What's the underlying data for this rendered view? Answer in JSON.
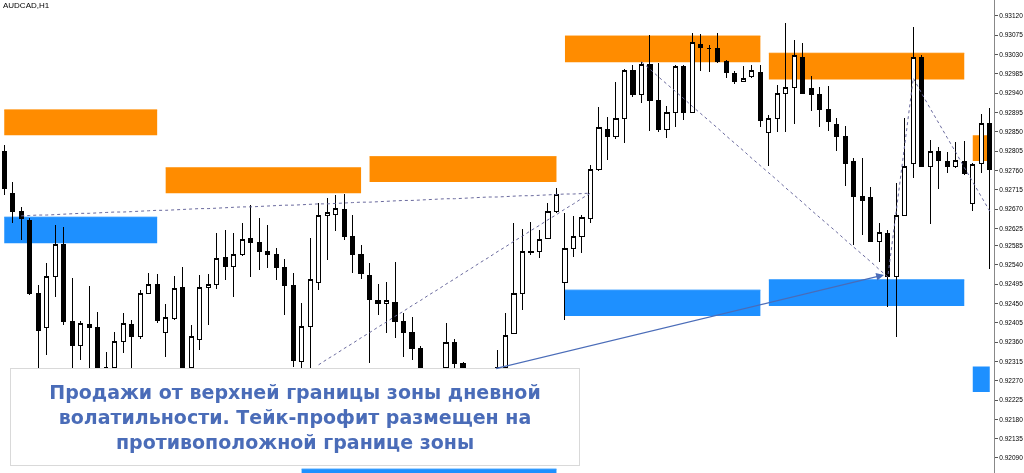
{
  "chart_data": {
    "type": "candlestick",
    "title": "AUDCAD,H1",
    "color": "#000000",
    "tick_labels": "y",
    "categories": [
      null,
      null,
      null,
      null,
      null,
      null,
      null,
      null,
      null,
      null,
      null,
      null,
      null,
      null,
      null,
      null,
      null,
      null,
      null,
      null,
      null,
      null,
      null,
      null,
      null,
      null,
      null,
      null,
      null,
      null,
      null,
      null,
      null,
      null,
      null,
      null,
      null,
      null,
      null,
      null,
      null,
      null,
      null,
      null,
      null,
      null,
      null,
      null,
      null,
      null,
      null,
      null,
      null,
      null,
      null,
      null,
      null,
      null,
      null,
      null,
      null,
      null,
      null,
      null,
      null,
      null,
      null,
      null,
      null,
      null,
      null,
      null,
      null,
      null,
      null,
      null,
      null,
      null,
      null,
      null,
      null,
      null,
      null,
      null,
      null,
      null,
      null,
      null,
      null,
      null,
      null,
      null,
      null,
      null,
      null,
      null,
      null,
      null,
      null,
      null,
      null,
      null,
      null,
      null,
      null,
      null,
      null,
      null,
      null,
      null,
      null,
      null,
      null,
      null,
      null,
      null,
      null
    ],
    "ohlc": [
      [
        0.92803,
        0.92819,
        0.92703,
        0.92719
      ],
      [
        0.92707,
        0.92733,
        0.92637,
        0.92665
      ],
      [
        0.92665,
        0.92675,
        0.92598,
        0.92647
      ],
      [
        0.92644,
        0.92649,
        0.9247,
        0.92474
      ],
      [
        0.92474,
        0.92493,
        0.923,
        0.92388
      ],
      [
        0.92395,
        0.92544,
        0.9233,
        0.92512
      ],
      [
        0.92512,
        0.92633,
        0.92465,
        0.92588
      ],
      [
        0.92588,
        0.92628,
        0.924,
        0.92407
      ],
      [
        0.92407,
        0.92509,
        0.923,
        0.92351
      ],
      [
        0.92351,
        0.92409,
        0.92318,
        0.92404
      ],
      [
        0.924,
        0.92491,
        0.923,
        0.92395
      ],
      [
        0.92395,
        0.9243,
        0.923,
        0.923
      ],
      [
        0.923,
        0.92337,
        0.923,
        0.923
      ],
      [
        0.923,
        0.92383,
        0.923,
        0.92362
      ],
      [
        0.92362,
        0.92428,
        0.92335,
        0.92404
      ],
      [
        0.924,
        0.92411,
        0.923,
        0.92372
      ],
      [
        0.92372,
        0.92481,
        0.92367,
        0.92474
      ],
      [
        0.92474,
        0.92521,
        0.92472,
        0.92495
      ],
      [
        0.92495,
        0.92519,
        0.92404,
        0.92411
      ],
      [
        0.92383,
        0.92449,
        0.92325,
        0.92418
      ],
      [
        0.92414,
        0.92514,
        0.92411,
        0.92486
      ],
      [
        0.92488,
        0.92535,
        0.923,
        0.923
      ],
      [
        0.923,
        0.924,
        0.923,
        0.92372
      ],
      [
        0.92367,
        0.92516,
        0.92342,
        0.92488
      ],
      [
        0.92488,
        0.92519,
        0.924,
        0.92495
      ],
      [
        0.92495,
        0.92614,
        0.92484,
        0.92554
      ],
      [
        0.92556,
        0.92621,
        0.92505,
        0.92535
      ],
      [
        0.92535,
        0.92614,
        0.92465,
        0.92563
      ],
      [
        0.92563,
        0.92637,
        0.92561,
        0.926
      ],
      [
        0.92602,
        0.92679,
        0.92512,
        0.92593
      ],
      [
        0.92593,
        0.92649,
        0.92528,
        0.9257
      ],
      [
        0.92572,
        0.92633,
        0.92533,
        0.92565
      ],
      [
        0.92563,
        0.92579,
        0.92505,
        0.92533
      ],
      [
        0.92533,
        0.92554,
        0.92423,
        0.92491
      ],
      [
        0.92491,
        0.92521,
        0.92302,
        0.92316
      ],
      [
        0.92314,
        0.92451,
        0.923,
        0.92397
      ],
      [
        0.92397,
        0.92602,
        0.923,
        0.92505
      ],
      [
        0.925,
        0.92684,
        0.92481,
        0.92656
      ],
      [
        0.92654,
        0.92696,
        0.92551,
        0.92661
      ],
      [
        0.92658,
        0.92703,
        0.92619,
        0.92672
      ],
      [
        0.9267,
        0.92705,
        0.92598,
        0.92605
      ],
      [
        0.92607,
        0.92656,
        0.92521,
        0.92565
      ],
      [
        0.92565,
        0.92586,
        0.92507,
        0.92519
      ],
      [
        0.92514,
        0.92544,
        0.92311,
        0.9246
      ],
      [
        0.92458,
        0.92495,
        0.92423,
        0.92449
      ],
      [
        0.92451,
        0.925,
        0.92381,
        0.92456
      ],
      [
        0.92453,
        0.92547,
        0.92369,
        0.92409
      ],
      [
        0.92407,
        0.92428,
        0.92325,
        0.92383
      ],
      [
        0.92383,
        0.92418,
        0.92318,
        0.92346
      ],
      [
        0.92344,
        0.92351,
        0.923,
        0.923
      ],
      null,
      null,
      [
        0.923,
        0.92404,
        0.923,
        0.9236
      ],
      [
        0.9236,
        0.92367,
        0.923,
        0.92309
      ],
      [
        0.92309,
        0.92314,
        0.923,
        0.923
      ],
      null,
      null,
      null,
      [
        0.923,
        0.92342,
        0.923,
        0.923
      ],
      [
        0.923,
        0.92428,
        0.923,
        0.92376
      ],
      [
        0.92381,
        0.92637,
        0.92379,
        0.92474
      ],
      [
        0.92474,
        0.92623,
        0.92435,
        0.9257
      ],
      [
        0.9257,
        0.9264,
        0.92563,
        0.92568
      ],
      [
        0.9257,
        0.92621,
        0.92556,
        0.926
      ],
      [
        0.92602,
        0.92684,
        0.926,
        0.92665
      ],
      [
        0.92665,
        0.92719,
        0.92661,
        0.92705
      ],
      [
        0.925,
        0.92661,
        0.92411,
        0.92579
      ],
      [
        0.92579,
        0.92654,
        0.92558,
        0.92605
      ],
      [
        0.92607,
        0.92656,
        0.92568,
        0.92651
      ],
      [
        0.92649,
        0.92773,
        0.92637,
        0.92761
      ],
      [
        0.92761,
        0.92908,
        0.92759,
        0.92859
      ],
      [
        0.92856,
        0.92884,
        0.92784,
        0.92838
      ],
      [
        0.9284,
        0.92966,
        0.92833,
        0.9288
      ],
      [
        0.9288,
        0.92996,
        0.92824,
        0.92992
      ],
      [
        0.92992,
        0.93006,
        0.92931,
        0.92938
      ],
      [
        0.92938,
        0.93013,
        0.92917,
        0.93006
      ],
      [
        0.93006,
        0.93075,
        0.92852,
        0.92922
      ],
      [
        0.92924,
        0.9301,
        0.92849,
        0.92856
      ],
      [
        0.92856,
        0.9291,
        0.92835,
        0.92896
      ],
      [
        0.92894,
        0.93006,
        0.92861,
        0.93001
      ],
      [
        0.93001,
        0.93006,
        0.92877,
        0.92894
      ],
      [
        0.92896,
        0.9308,
        0.92894,
        0.93057
      ],
      [
        0.93054,
        0.93078,
        0.92992,
        0.93047
      ],
      [
        0.93045,
        0.93052,
        0.92989,
        0.93045
      ],
      [
        0.93043,
        0.9308,
        0.9301,
        0.93013
      ],
      [
        0.93013,
        0.93017,
        0.92975,
        0.92989
      ],
      [
        0.92985,
        0.92992,
        0.92961,
        0.92966
      ],
      [
        0.92968,
        0.93003,
        0.92966,
        0.92975
      ],
      [
        0.92978,
        0.93006,
        0.92975,
        0.92992
      ],
      [
        0.92989,
        0.93006,
        0.92861,
        0.92877
      ],
      [
        0.92849,
        0.92889,
        0.9277,
        0.92882
      ],
      [
        0.92882,
        0.92959,
        0.92849,
        0.9294
      ],
      [
        0.9294,
        0.93103,
        0.92849,
        0.92952
      ],
      [
        0.92952,
        0.93064,
        0.92868,
        0.93027
      ],
      [
        0.93024,
        0.93057,
        0.9294,
        0.9294
      ],
      [
        0.9295,
        0.9298,
        0.92898,
        0.92936
      ],
      [
        0.92936,
        0.92954,
        0.92861,
        0.92901
      ],
      [
        0.92903,
        0.92957,
        0.92852,
        0.92873
      ],
      [
        0.92868,
        0.92882,
        0.92805,
        0.9284
      ],
      [
        0.9284,
        0.92863,
        0.92724,
        0.92775
      ],
      [
        0.9278,
        0.92789,
        0.92586,
        0.927
      ],
      [
        0.927,
        0.92789,
        0.92609,
        0.92691
      ],
      [
        0.92696,
        0.92721,
        0.92595,
        0.92595
      ],
      [
        0.92595,
        0.92637,
        0.92547,
        0.92616
      ],
      [
        0.92614,
        0.92621,
        0.92442,
        0.92512
      ],
      [
        0.92512,
        0.92731,
        0.92372,
        0.92654
      ],
      [
        0.92656,
        0.92882,
        0.92654,
        0.9277
      ],
      [
        0.92777,
        0.93094,
        0.92742,
        0.93024
      ],
      [
        0.93024,
        0.93029,
        0.92768,
        0.92768
      ],
      [
        0.9277,
        0.92831,
        0.92635,
        0.92803
      ],
      [
        0.92803,
        0.92814,
        0.92717,
        0.92782
      ],
      [
        0.9278,
        0.92803,
        0.92754,
        0.92768
      ],
      [
        0.92768,
        0.92826,
        0.92766,
        0.92782
      ],
      [
        0.9278,
        0.92828,
        0.92749,
        0.92752
      ],
      [
        0.92684,
        0.92777,
        0.92665,
        0.92773
      ],
      [
        0.92775,
        0.92891,
        0.92754,
        0.9287
      ],
      [
        0.9287,
        0.92905,
        0.9253,
        0.92763
      ]
    ],
    "series": [
      {
        "type": "line",
        "color": "#ff8c00",
        "values": [
          0.92901,
          0.92901,
          0.92901,
          0.92901,
          0.92901,
          0.92901,
          0.92901,
          0.92901,
          0.92901,
          0.92901,
          0.92901,
          0.92901,
          0.92901,
          0.92901,
          0.92901,
          0.92901,
          0.92901,
          0.92901,
          0.92901,
          0.92766,
          0.92766,
          0.92766,
          0.92766,
          0.92766,
          0.92766,
          0.92766,
          0.92766,
          0.92766,
          0.92766,
          0.92766,
          0.92766,
          0.92766,
          0.92766,
          0.92766,
          0.92766,
          0.92766,
          0.92766,
          0.92766,
          0.92766,
          0.92766,
          0.92766,
          0.92766,
          0.92766,
          0.92792,
          0.92792,
          0.92792,
          0.92792,
          0.92792,
          0.92792,
          0.92792,
          0.92792,
          0.92792,
          0.92792,
          0.92792,
          0.92792,
          0.92792,
          0.92792,
          0.92792,
          0.92792,
          0.92792,
          0.92792,
          0.92792,
          0.92792,
          0.92792,
          0.92792,
          0.92792,
          0.93073,
          0.93073,
          0.93073,
          0.93073,
          0.93073,
          0.93073,
          0.93073,
          0.93073,
          0.93073,
          0.93073,
          0.93073,
          0.93073,
          0.93073,
          0.93073,
          0.93073,
          0.93073,
          0.93073,
          0.93073,
          0.93073,
          0.93073,
          0.93073,
          0.93073,
          0.93073,
          0.93073,
          0.93033,
          0.93033,
          0.93033,
          0.93033,
          0.93033,
          0.93033,
          0.93033,
          0.93033,
          0.93033,
          0.93033,
          0.93033,
          0.93033,
          0.93033,
          0.93033,
          0.93033,
          0.93033,
          0.93033,
          0.93033,
          0.93033,
          0.93033,
          0.93033,
          0.93033,
          0.93033,
          0.93033,
          null,
          null,
          null
        ],
        "upper": [
          0.92901,
          0.92901,
          0.92901,
          0.92901,
          0.92901,
          0.92901,
          0.92901,
          0.92901,
          0.92901,
          0.92901,
          0.92901,
          0.92901,
          0.92901,
          0.92901,
          0.92901,
          0.92901,
          0.92901,
          0.92901,
          0.92901,
          0.92766,
          0.92766,
          0.92766,
          0.92766,
          0.92766,
          0.92766,
          0.92766,
          0.92766,
          0.92766,
          0.92766,
          0.92766,
          0.92766,
          0.92766,
          0.92766,
          0.92766,
          0.92766,
          0.92766,
          0.92766,
          0.92766,
          0.92766,
          0.92766,
          0.92766,
          0.92766,
          0.92766,
          0.92792,
          0.92792,
          0.92792,
          0.92792,
          0.92792,
          0.92792,
          0.92792,
          0.92792,
          0.92792,
          0.92792,
          0.92792,
          0.92792,
          0.92792,
          0.92792,
          0.92792,
          0.92792,
          0.92792,
          0.92792,
          0.92792,
          0.92792,
          0.92792,
          0.92792,
          0.92792,
          0.93073,
          0.93073,
          0.93073,
          0.93073,
          0.93073,
          0.93073,
          0.93073,
          0.93073,
          0.93073,
          0.93073,
          0.93073,
          0.93073,
          0.93073,
          0.93073,
          0.93073,
          0.93073,
          0.93073,
          0.93073,
          0.93073,
          0.93073,
          0.93073,
          0.93073,
          0.93073,
          0.93073,
          0.93033,
          0.93033,
          0.93033,
          0.93033,
          0.93033,
          0.93033,
          0.93033,
          0.93033,
          0.93033,
          0.93033,
          0.93033,
          0.93033,
          0.93033,
          0.93033,
          0.93033,
          0.93033,
          0.93033,
          0.93033,
          0.93033,
          0.93033,
          0.93033,
          0.93033,
          0.93033,
          0.93033,
          0.92842,
          0.92842,
          0.92842
        ],
        "lower": [
          0.92842,
          0.92842,
          0.92842,
          0.92842,
          0.92842,
          0.92842,
          0.92842,
          0.92842,
          0.92842,
          0.92842,
          0.92842,
          0.92842,
          0.92842,
          0.92842,
          0.92842,
          0.92842,
          0.92842,
          0.92842,
          0.92842,
          0.92707,
          0.92707,
          0.92707,
          0.92707,
          0.92707,
          0.92707,
          0.92707,
          0.92707,
          0.92707,
          0.92707,
          0.92707,
          0.92707,
          0.92707,
          0.92707,
          0.92707,
          0.92707,
          0.92707,
          0.92707,
          0.92707,
          0.92707,
          0.92707,
          0.92707,
          0.92707,
          0.92707,
          0.92733,
          0.92733,
          0.92733,
          0.92733,
          0.92733,
          0.92733,
          0.92733,
          0.92733,
          0.92733,
          0.92733,
          0.92733,
          0.92733,
          0.92733,
          0.92733,
          0.92733,
          0.92733,
          0.92733,
          0.92733,
          0.92733,
          0.92733,
          0.92733,
          0.92733,
          0.92733,
          0.93012,
          0.93012,
          0.93012,
          0.93012,
          0.93012,
          0.93012,
          0.93012,
          0.93012,
          0.93012,
          0.93012,
          0.93012,
          0.93012,
          0.93012,
          0.93012,
          0.93012,
          0.93012,
          0.93012,
          0.93012,
          0.93012,
          0.93012,
          0.93012,
          0.93012,
          0.93012,
          0.93012,
          0.92972,
          0.92972,
          0.92972,
          0.92972,
          0.92972,
          0.92972,
          0.92972,
          0.92972,
          0.92972,
          0.92972,
          0.92972,
          0.92972,
          0.92972,
          0.92972,
          0.92972,
          0.92972,
          0.92972,
          0.92972,
          0.92972,
          0.92972,
          0.92972,
          0.92972,
          0.92972,
          0.92972,
          0.92782,
          0.92782,
          0.92782
        ]
      },
      {
        "type": "line",
        "color": "#1e90ff",
        "values": [
          0.92651,
          0.92651,
          0.92651,
          0.92651,
          0.92651,
          0.92651,
          0.92651,
          0.92651,
          0.92651,
          0.92651,
          0.92651,
          0.92651,
          0.92651,
          0.92651,
          0.92651,
          0.92651,
          0.92651,
          0.92651,
          0.92651,
          null,
          null,
          null,
          null,
          null,
          null,
          null,
          null,
          null,
          null,
          null,
          null,
          null,
          null,
          null,
          null,
          0.92064,
          0.92064,
          0.92064,
          0.92064,
          0.92064,
          0.92064,
          0.92064,
          0.92064,
          0.92064,
          0.92064,
          0.92064,
          0.92064,
          0.92064,
          0.92064,
          0.92064,
          0.92064,
          0.92064,
          0.92064,
          0.92064,
          0.92064,
          0.92064,
          0.92064,
          0.92064,
          0.92064,
          0.92064,
          0.92064,
          0.92064,
          0.92064,
          0.92064,
          0.92064,
          0.92064,
          0.92481,
          0.92481,
          0.92481,
          0.92481,
          0.92481,
          0.92481,
          0.92481,
          0.92481,
          0.92481,
          0.92481,
          0.92481,
          0.92481,
          0.92481,
          0.92481,
          0.92481,
          0.92481,
          0.92481,
          0.92481,
          0.92481,
          0.92481,
          0.92481,
          0.92481,
          0.92481,
          0.92481,
          0.92505,
          0.92505,
          0.92505,
          0.92505,
          0.92505,
          0.92505,
          0.92505,
          0.92505,
          0.92505,
          0.92505,
          0.92505,
          0.92505,
          0.92505,
          0.92505,
          0.92505,
          0.92505,
          0.92505,
          0.92505,
          0.92505,
          0.92505,
          0.92505,
          0.92505,
          0.92505,
          0.92505,
          null,
          null,
          null
        ],
        "upper": [
          0.92651,
          0.92651,
          0.92651,
          0.92651,
          0.92651,
          0.92651,
          0.92651,
          0.92651,
          0.92651,
          0.92651,
          0.92651,
          0.92651,
          0.92651,
          0.92651,
          0.92651,
          0.92651,
          0.92651,
          0.92651,
          0.92651,
          null,
          null,
          null,
          null,
          null,
          null,
          null,
          null,
          null,
          null,
          null,
          null,
          null,
          null,
          null,
          null,
          0.92064,
          0.92064,
          0.92064,
          0.92064,
          0.92064,
          0.92064,
          0.92064,
          0.92064,
          0.92064,
          0.92064,
          0.92064,
          0.92064,
          0.92064,
          0.92064,
          0.92064,
          0.92064,
          0.92064,
          0.92064,
          0.92064,
          0.92064,
          0.92064,
          0.92064,
          0.92064,
          0.92064,
          0.92064,
          0.92064,
          0.92064,
          0.92064,
          0.92064,
          0.92064,
          0.92064,
          0.92481,
          0.92481,
          0.92481,
          0.92481,
          0.92481,
          0.92481,
          0.92481,
          0.92481,
          0.92481,
          0.92481,
          0.92481,
          0.92481,
          0.92481,
          0.92481,
          0.92481,
          0.92481,
          0.92481,
          0.92481,
          0.92481,
          0.92481,
          0.92481,
          0.92481,
          0.92481,
          0.92481,
          0.92505,
          0.92505,
          0.92505,
          0.92505,
          0.92505,
          0.92505,
          0.92505,
          0.92505,
          0.92505,
          0.92505,
          0.92505,
          0.92505,
          0.92505,
          0.92505,
          0.92505,
          0.92505,
          0.92505,
          0.92505,
          0.92505,
          0.92505,
          0.92505,
          0.92505,
          0.92505,
          0.92505,
          0.92303,
          0.92303,
          0.92303
        ],
        "lower": [
          0.9259,
          0.9259,
          0.9259,
          0.9259,
          0.9259,
          0.9259,
          0.9259,
          0.9259,
          0.9259,
          0.9259,
          0.9259,
          0.9259,
          0.9259,
          0.9259,
          0.9259,
          0.9259,
          0.9259,
          0.9259,
          0.9259,
          null,
          null,
          null,
          null,
          null,
          null,
          null,
          null,
          null,
          null,
          null,
          null,
          null,
          null,
          null,
          null,
          0.92055,
          0.92055,
          0.92055,
          0.92055,
          0.92055,
          0.92055,
          0.92055,
          0.92055,
          0.92055,
          0.92055,
          0.92055,
          0.92055,
          0.92055,
          0.92055,
          0.92055,
          0.92055,
          0.92055,
          0.92055,
          0.92055,
          0.92055,
          0.92055,
          0.92055,
          0.92055,
          0.92055,
          0.92055,
          0.92055,
          0.92055,
          0.92055,
          0.92055,
          0.92055,
          0.92055,
          0.92421,
          0.92421,
          0.92421,
          0.92421,
          0.92421,
          0.92421,
          0.92421,
          0.92421,
          0.92421,
          0.92421,
          0.92421,
          0.92421,
          0.92421,
          0.92421,
          0.92421,
          0.92421,
          0.92421,
          0.92421,
          0.92421,
          0.92421,
          0.92421,
          0.92421,
          0.92421,
          0.92421,
          0.92444,
          0.92444,
          0.92444,
          0.92444,
          0.92444,
          0.92444,
          0.92444,
          0.92444,
          0.92444,
          0.92444,
          0.92444,
          0.92444,
          0.92444,
          0.92444,
          0.92444,
          0.92444,
          0.92444,
          0.92444,
          0.92444,
          0.92444,
          0.92444,
          0.92444,
          0.92444,
          0.92444,
          0.92244,
          0.92244,
          0.92244
        ]
      },
      {
        "type": "line",
        "color": "#6a6a9e",
        "line_style": "dotted",
        "values": [
          null,
          null,
          0.92654,
          0.92655,
          0.92656,
          0.92656,
          0.92657,
          0.92658,
          0.92659,
          0.9266,
          0.9266,
          0.92661,
          0.92662,
          0.92663,
          0.92663,
          0.92664,
          0.92665,
          0.92666,
          0.92667,
          0.92667,
          0.92668,
          0.92669,
          0.9267,
          0.92671,
          0.92671,
          0.92672,
          0.92673,
          0.92674,
          0.92675,
          0.92675,
          0.92676,
          0.92677,
          0.92678,
          0.92679,
          0.92679,
          0.9268,
          0.92681,
          0.92682,
          0.92682,
          0.92683,
          0.92684,
          0.92685,
          0.92686,
          0.92686,
          0.92687,
          0.92688,
          0.92689,
          0.9269,
          0.9269,
          0.92691,
          0.92692,
          0.92693,
          0.92694,
          0.92694,
          0.92695,
          0.92696,
          0.92697,
          0.92698,
          0.92698,
          0.92699,
          0.927,
          0.92701,
          0.92701,
          0.92702,
          0.92703,
          0.92704,
          0.92705,
          0.92705,
          0.92706,
          0.92707,
          null,
          null,
          null,
          null,
          null,
          null,
          null,
          null,
          null,
          null,
          null,
          null,
          null,
          null,
          null,
          null,
          null,
          null,
          null,
          null,
          null,
          null,
          null,
          null,
          null,
          null,
          null,
          null,
          null,
          null,
          null,
          null,
          null,
          null,
          null,
          null,
          null,
          null,
          null,
          null,
          null,
          null,
          null,
          null,
          null,
          null,
          null
        ]
      },
      {
        "type": "line",
        "color": "#6a6a9e",
        "line_style": "dotted",
        "values": [
          null,
          null,
          null,
          null,
          null,
          null,
          null,
          null,
          null,
          null,
          null,
          null,
          null,
          null,
          null,
          null,
          null,
          null,
          null,
          null,
          null,
          null,
          null,
          null,
          null,
          null,
          null,
          null,
          null,
          null,
          null,
          null,
          null,
          null,
          null,
          null,
          null,
          0.92307,
          0.9232,
          0.92332,
          0.92345,
          0.92357,
          0.9237,
          0.92382,
          0.92395,
          0.92407,
          0.9242,
          0.92432,
          0.92445,
          0.92457,
          0.9247,
          0.92482,
          0.92495,
          0.92507,
          0.9252,
          0.92532,
          0.92545,
          0.92557,
          0.9257,
          0.92582,
          0.92595,
          0.92607,
          0.9262,
          0.92632,
          0.92645,
          0.92657,
          0.9267,
          0.92682,
          0.92695,
          0.92707,
          null,
          null,
          null,
          null,
          null,
          null,
          null,
          null,
          null,
          null,
          null,
          null,
          null,
          null,
          null,
          null,
          null,
          null,
          null,
          null,
          null,
          null,
          null,
          null,
          null,
          null,
          null,
          null,
          null,
          null,
          null,
          null,
          null,
          null,
          null,
          null,
          null,
          null,
          null,
          null,
          null,
          null,
          null,
          null,
          null,
          null,
          null
        ]
      },
      {
        "type": "line",
        "color": "#6a6a9e",
        "line_style": "dotted",
        "values": [
          null,
          null,
          null,
          null,
          null,
          null,
          null,
          null,
          null,
          null,
          null,
          null,
          null,
          null,
          null,
          null,
          null,
          null,
          null,
          null,
          null,
          null,
          null,
          null,
          null,
          null,
          null,
          null,
          null,
          null,
          null,
          null,
          null,
          null,
          null,
          null,
          null,
          null,
          null,
          null,
          null,
          null,
          null,
          null,
          null,
          null,
          null,
          null,
          null,
          null,
          null,
          null,
          null,
          null,
          null,
          null,
          null,
          null,
          null,
          null,
          null,
          null,
          null,
          null,
          null,
          null,
          null,
          null,
          null,
          null,
          null,
          null,
          null,
          null,
          null,
          0.93013,
          0.92996,
          0.92978,
          0.92961,
          0.92944,
          0.92927,
          0.92909,
          0.92892,
          0.92875,
          0.92858,
          0.9284,
          0.92823,
          0.92806,
          0.92788,
          0.92771,
          0.92754,
          0.92737,
          0.92719,
          0.92702,
          0.92685,
          0.92667,
          0.9265,
          0.92633,
          0.92616,
          0.92598,
          0.92581,
          0.92564,
          0.92547,
          0.92529,
          0.92512,
          0.92666,
          0.92821,
          0.92975,
          0.92939,
          0.92904,
          0.9287,
          0.92836,
          0.92802,
          0.92767,
          0.92733,
          0.92699,
          0.92665
        ]
      }
    ],
    "ylim": [
      0.92055,
      0.93157
    ],
    "yticks": [
      {
        "value": 0.9312,
        "label": "0.93120"
      },
      0.93075,
      {
        "value": 0.9303,
        "label": "0.93030"
      },
      0.92985,
      {
        "value": 0.9294,
        "label": "0.92940"
      },
      0.92895,
      {
        "value": 0.9285,
        "label": "0.92850"
      },
      0.92805,
      {
        "value": 0.9276,
        "label": "0.92760"
      },
      0.92715,
      {
        "value": 0.9267,
        "label": "0.92670"
      },
      0.92625,
      0.92585,
      {
        "value": 0.9254,
        "label": "0.92540"
      },
      0.92495,
      {
        "value": 0.9245,
        "label": "0.92450"
      },
      0.92405,
      {
        "value": 0.9236,
        "label": "0.92360"
      },
      0.92315,
      {
        "value": 0.9227,
        "label": "0.92270"
      },
      0.92225,
      {
        "value": 0.9218,
        "label": "0.92180"
      },
      0.92135,
      {
        "value": 0.9209,
        "label": "0.92090"
      }
    ],
    "annotations": [
      "Продажи от верхней границы зоны дневной\nволатильности. Тейк-профит размещен на\nпротивоположной границе зоны"
    ]
  }
}
